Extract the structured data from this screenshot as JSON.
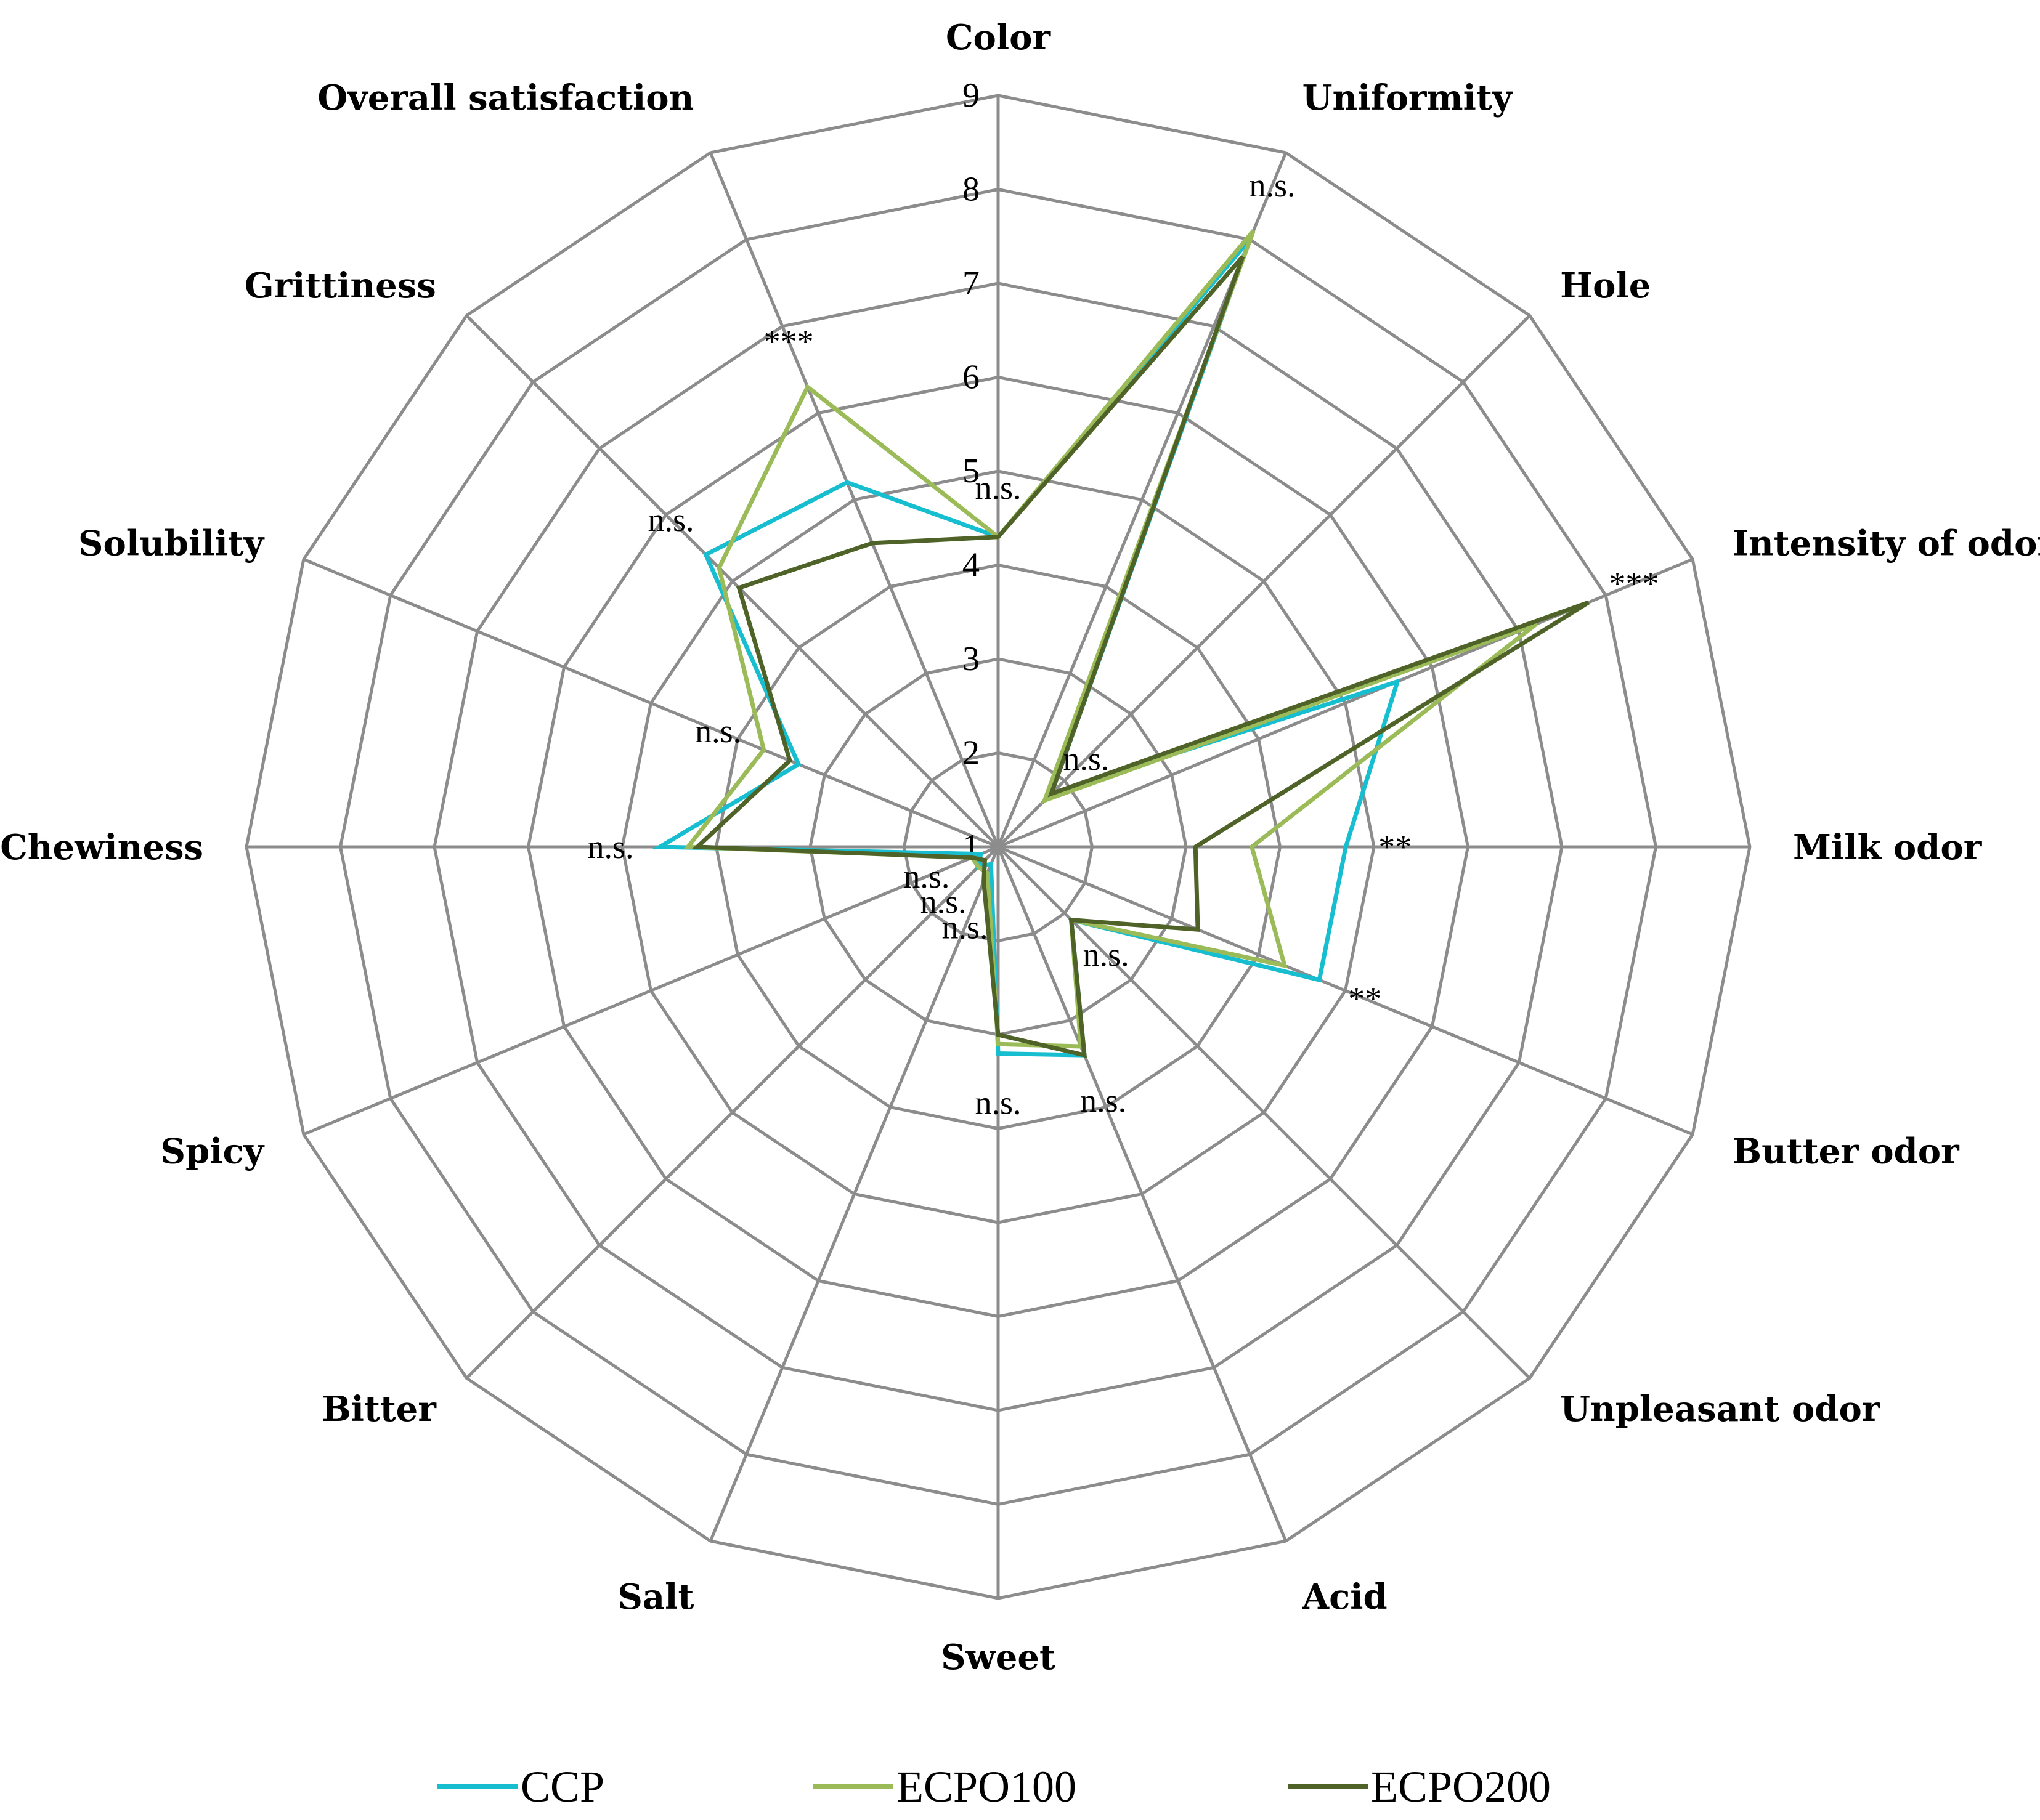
{
  "chart_data": {
    "type": "radar",
    "title": "",
    "scale": {
      "min": 1,
      "max": 9,
      "ticks": [
        "1",
        "2",
        "3",
        "4",
        "5",
        "6",
        "7",
        "8",
        "9"
      ]
    },
    "axes": [
      "Color",
      "Uniformity",
      "Hole",
      "Intensity of odor",
      "Milk odor",
      "Butter odor",
      "Unpleasant odor",
      "Acid",
      "Sweet",
      "Salt",
      "Bitter",
      "Spicy",
      "Chewiness",
      "Solubility",
      "Grittiness",
      "Overall satisfaction"
    ],
    "significance": [
      "n.s.",
      "n.s.",
      "n.s.",
      "***",
      "**",
      "**",
      "n.s.",
      "n.s.",
      "n.s.",
      "n.s.",
      "n.s.",
      "n.s.",
      "n.s.",
      "n.s.",
      "n.s.",
      "***"
    ],
    "series": [
      {
        "name": "CCP",
        "color": "#17becf",
        "values": [
          4.3,
          8.0,
          1.8,
          5.6,
          4.7,
          4.7,
          2.1,
          3.4,
          3.2,
          1.2,
          1.3,
          1.2,
          4.6,
          3.3,
          5.4,
          5.2
        ]
      },
      {
        "name": "ECPO100",
        "color": "#9bbb59",
        "values": [
          4.3,
          8.1,
          1.7,
          7.2,
          3.7,
          4.3,
          2.1,
          3.3,
          3.1,
          1.3,
          1.3,
          1.3,
          4.3,
          3.7,
          5.2,
          6.3
        ]
      },
      {
        "name": "ECPO200",
        "color": "#4f6228",
        "values": [
          4.3,
          7.8,
          1.8,
          7.8,
          3.1,
          3.3,
          2.1,
          3.4,
          3.0,
          1.4,
          1.2,
          1.3,
          4.2,
          3.4,
          4.9,
          4.5
        ]
      }
    ],
    "legend_position": "bottom",
    "grid": true
  }
}
